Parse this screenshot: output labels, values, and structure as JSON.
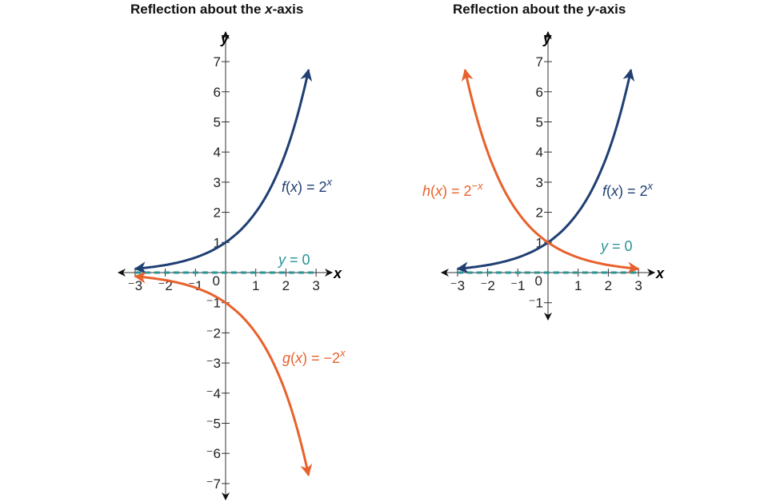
{
  "colors": {
    "f": "#1f3f73",
    "reflected": "#e8612c",
    "asymptote": "#2a9393",
    "axis": "#999999"
  },
  "chart_data": [
    {
      "type": "line",
      "title": {
        "pre": "Reflection about the ",
        "var": "x",
        "post": "-axis"
      },
      "xlabel": "x",
      "ylabel": "y",
      "xlim": [
        -3,
        3
      ],
      "ylim": [
        -7,
        7
      ],
      "xticks": [
        -3,
        -2,
        -1,
        1,
        2,
        3
      ],
      "yticks": [
        -7,
        -6,
        -5,
        -4,
        -3,
        -2,
        -1,
        1,
        2,
        3,
        4,
        5,
        6,
        7
      ],
      "origin_label": "0",
      "grid": false,
      "series": [
        {
          "name": "f(x) = 2^x",
          "fn": "2^x",
          "color": "#1f3f73",
          "x_range": [
            -3,
            2.75
          ],
          "arrows": "both",
          "label": {
            "func": "f",
            "arg": "x",
            "rhs": " = 2",
            "exp": "x"
          }
        },
        {
          "name": "g(x) = -2^x",
          "fn": "-2^x",
          "color": "#e8612c",
          "x_range": [
            -3,
            2.75
          ],
          "arrows": "both",
          "label": {
            "func": "g",
            "arg": "x",
            "rhs": " = −2",
            "exp": "x"
          }
        },
        {
          "name": "y = 0",
          "fn": "0",
          "color": "#2a9393",
          "dashed": true,
          "x_range": [
            -3,
            3
          ],
          "label": {
            "lhs": "y",
            "rhs": " = 0"
          }
        }
      ]
    },
    {
      "type": "line",
      "title": {
        "pre": "Reflection about the ",
        "var": "y",
        "post": "-axis"
      },
      "xlabel": "x",
      "ylabel": "y",
      "xlim": [
        -3,
        3
      ],
      "ylim": [
        -1,
        7
      ],
      "xticks": [
        -3,
        -2,
        -1,
        1,
        2,
        3
      ],
      "yticks": [
        -1,
        1,
        2,
        3,
        4,
        5,
        6,
        7
      ],
      "origin_label": "0",
      "grid": false,
      "series": [
        {
          "name": "f(x) = 2^x",
          "fn": "2^x",
          "color": "#1f3f73",
          "x_range": [
            -3,
            2.75
          ],
          "arrows": "both",
          "label": {
            "func": "f",
            "arg": "x",
            "rhs": " = 2",
            "exp": "x"
          }
        },
        {
          "name": "h(x) = 2^-x",
          "fn": "2^-x",
          "color": "#e8612c",
          "x_range": [
            -2.75,
            3
          ],
          "arrows": "both",
          "label": {
            "func": "h",
            "arg": "x",
            "rhs": " = 2",
            "exp": "−x"
          }
        },
        {
          "name": "y = 0",
          "fn": "0",
          "color": "#2a9393",
          "dashed": true,
          "x_range": [
            -3,
            3
          ],
          "label": {
            "lhs": "y",
            "rhs": " = 0"
          }
        }
      ]
    }
  ]
}
